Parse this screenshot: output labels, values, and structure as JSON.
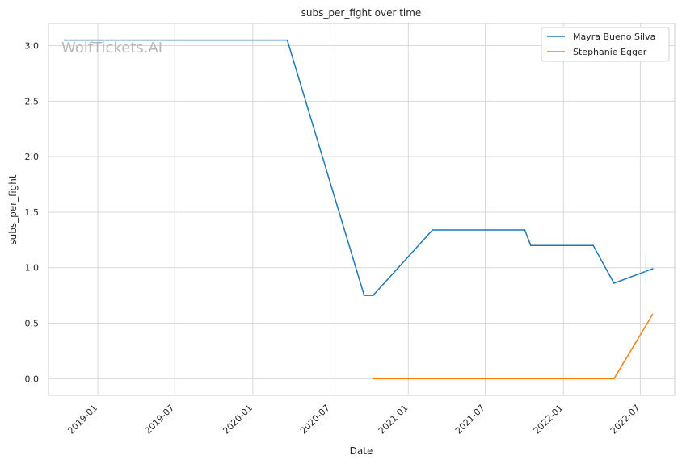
{
  "chart_data": {
    "type": "line",
    "title": "subs_per_fight over time",
    "xlabel": "Date",
    "ylabel": "subs_per_fight",
    "watermark": "WolfTickets.AI",
    "grid": true,
    "legend_position": "top-right",
    "xlim": [
      "2018-09-07",
      "2022-09-20"
    ],
    "ylim": [
      -0.15,
      3.2
    ],
    "x_ticks": [
      "2019-01",
      "2019-07",
      "2020-01",
      "2020-07",
      "2021-01",
      "2021-07",
      "2022-01",
      "2022-07"
    ],
    "y_ticks": [
      "0.0",
      "0.5",
      "1.0",
      "1.5",
      "2.0",
      "2.5",
      "3.0"
    ],
    "series": [
      {
        "name": "Mayra Bueno Silva",
        "color": "#1f77b4",
        "x": [
          "2018-10-15",
          "2020-03-22",
          "2020-09-19",
          "2020-10-10",
          "2021-02-27",
          "2021-10-02",
          "2021-10-16",
          "2022-03-12",
          "2022-04-30",
          "2022-07-30"
        ],
        "y": [
          3.05,
          3.05,
          0.75,
          0.75,
          1.34,
          1.34,
          1.2,
          1.2,
          0.86,
          0.99
        ]
      },
      {
        "name": "Stephanie Egger",
        "color": "#ff7f0e",
        "x": [
          "2020-10-10",
          "2022-04-30",
          "2022-07-30"
        ],
        "y": [
          0.0,
          0.0,
          0.58
        ]
      }
    ]
  }
}
